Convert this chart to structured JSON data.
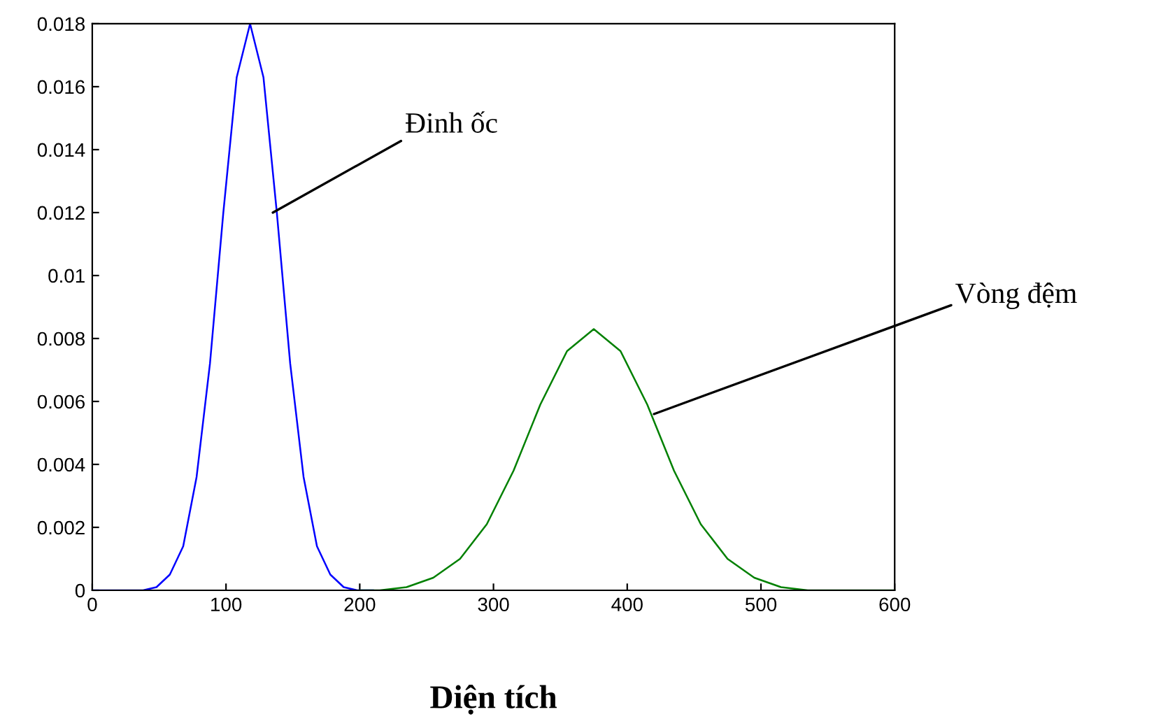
{
  "chart_data": {
    "type": "line",
    "xlabel": "Diện tích",
    "series": [
      {
        "color": "#0000ff",
        "x": [
          0,
          30,
          38,
          48,
          58,
          68,
          78,
          88,
          98,
          108,
          118,
          128,
          138,
          148,
          158,
          168,
          178,
          188,
          198,
          210
        ],
        "values": [
          0,
          0,
          0,
          0.0001,
          0.0005,
          0.0014,
          0.0036,
          0.0072,
          0.012,
          0.0163,
          0.018,
          0.0163,
          0.012,
          0.0072,
          0.0036,
          0.0014,
          0.0005,
          0.0001,
          0,
          0
        ]
      },
      {
        "color": "#008000",
        "x": [
          200,
          215,
          235,
          255,
          275,
          295,
          315,
          335,
          355,
          375,
          395,
          415,
          435,
          455,
          475,
          495,
          515,
          535,
          555,
          600
        ],
        "values": [
          0,
          0,
          0.0001,
          0.0004,
          0.001,
          0.0021,
          0.0038,
          0.0059,
          0.0076,
          0.0083,
          0.0076,
          0.0059,
          0.0038,
          0.0021,
          0.001,
          0.0004,
          0.0001,
          0,
          0,
          0
        ]
      }
    ],
    "annotations": [
      {
        "text": "Đinh ốc",
        "x": 135,
        "y": 0.012
      },
      {
        "text": "Vòng đệm",
        "x": 420,
        "y": 0.0056
      }
    ],
    "xlim": [
      0,
      600
    ],
    "xticks": [
      0,
      100,
      200,
      300,
      400,
      500,
      600
    ],
    "ylim": [
      0,
      0.018
    ],
    "yticks": [
      0,
      0.002,
      0.004,
      0.006,
      0.008,
      0.01,
      0.012,
      0.014,
      0.016,
      0.018
    ],
    "grid": false,
    "legend": false,
    "marker": "none",
    "line_style": "solid"
  }
}
